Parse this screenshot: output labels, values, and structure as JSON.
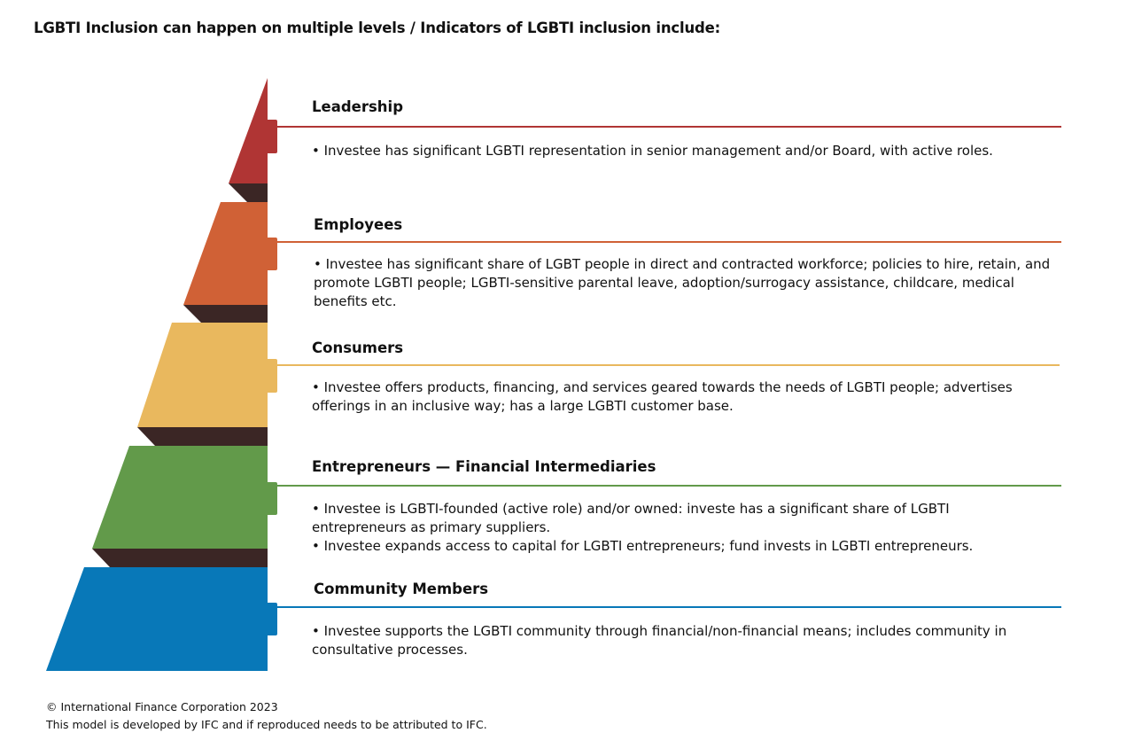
{
  "title": "LGBTI Inclusion can happen on multiple levels / Indicators of LGBTI inclusion include:",
  "levels": [
    {
      "name": "Leadership",
      "color": "#b03534",
      "bullets": [
        "• Investee has significant LGBTI representation in senior management and/or Board, with active roles."
      ]
    },
    {
      "name": "Employees",
      "color": "#d06136",
      "bullets": [
        "• Investee has significant share of LGBT people in direct and contracted workforce; policies to hire, retain, and promote LGBTI people; LGBTI-sensitive parental leave, adoption/surrogacy assistance, childcare, medical benefits etc."
      ]
    },
    {
      "name": "Consumers",
      "color": "#e9b85e",
      "bullets": [
        "• Investee offers products, financing, and services geared towards the needs of LGBTI people; advertises offerings in an inclusive way; has a large LGBTI customer base."
      ]
    },
    {
      "name": "Entrepreneurs — Financial Intermediaries",
      "color": "#629a4a",
      "bullets": [
        "• Investee is LGBTI-founded (active role) and/or owned: investe has a significant share of LGBTI entrepreneurs as primary suppliers.",
        "• Investee expands access to capital for LGBTI entrepreneurs; fund invests in LGBTI entrepreneurs."
      ]
    },
    {
      "name": "Community Members",
      "color": "#0878b8",
      "bullets": [
        "• Investee supports the LGBTI community through financial/non-financial means; includes community in consultative processes."
      ]
    }
  ],
  "shadow_color": "#3b2625",
  "footer": {
    "copyright": "© International Finance Corporation 2023",
    "note": "This model is developed by IFC and if reproduced needs to be attributed to IFC."
  }
}
